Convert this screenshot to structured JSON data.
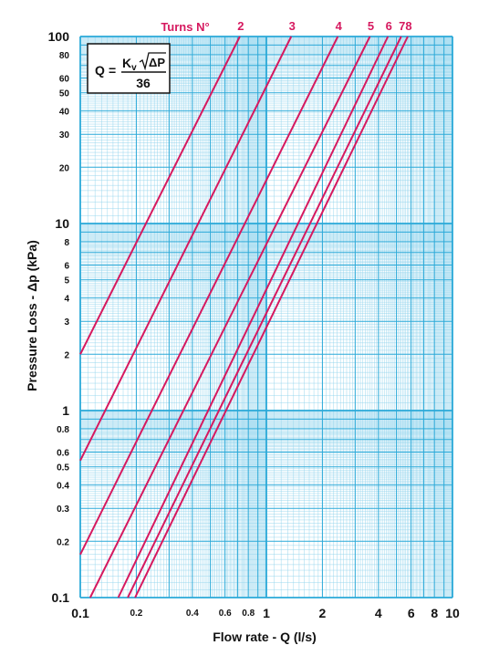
{
  "chart_data": {
    "type": "line",
    "title": "",
    "xlabel": "Flow rate - Q (l/s)",
    "ylabel": "Pressure Loss  - Δp (kPa)",
    "x_scale": "log",
    "y_scale": "log",
    "xlim": [
      0.1,
      10
    ],
    "ylim": [
      0.1,
      100
    ],
    "grid": true,
    "x_ticks": [
      {
        "value": 0.1,
        "label": "0.1"
      },
      {
        "value": 0.2,
        "label": "0.2"
      },
      {
        "value": 0.4,
        "label": "0.4"
      },
      {
        "value": 0.6,
        "label": "0.6"
      },
      {
        "value": 0.8,
        "label": "0.8"
      },
      {
        "value": 1,
        "label": "1"
      },
      {
        "value": 2,
        "label": "2"
      },
      {
        "value": 4,
        "label": "4"
      },
      {
        "value": 6,
        "label": "6"
      },
      {
        "value": 8,
        "label": "8"
      },
      {
        "value": 10,
        "label": "10"
      }
    ],
    "y_ticks": [
      {
        "value": 0.1,
        "label": "0.1"
      },
      {
        "value": 0.2,
        "label": "0.2"
      },
      {
        "value": 0.3,
        "label": "0.3"
      },
      {
        "value": 0.4,
        "label": "0.4"
      },
      {
        "value": 0.5,
        "label": "0.5"
      },
      {
        "value": 0.6,
        "label": "0.6"
      },
      {
        "value": 0.8,
        "label": "0.8"
      },
      {
        "value": 1,
        "label": "1"
      },
      {
        "value": 2,
        "label": "2"
      },
      {
        "value": 3,
        "label": "3"
      },
      {
        "value": 4,
        "label": "4"
      },
      {
        "value": 5,
        "label": "5"
      },
      {
        "value": 6,
        "label": "6"
      },
      {
        "value": 8,
        "label": "8"
      },
      {
        "value": 10,
        "label": "10"
      },
      {
        "value": 20,
        "label": "20"
      },
      {
        "value": 30,
        "label": "30"
      },
      {
        "value": 40,
        "label": "40"
      },
      {
        "value": 50,
        "label": "50"
      },
      {
        "value": 60,
        "label": "60"
      },
      {
        "value": 80,
        "label": "80"
      },
      {
        "value": 100,
        "label": "100"
      }
    ],
    "series_header": "Turns N°",
    "series": [
      {
        "name": "2",
        "x": [
          0.1,
          0.72
        ],
        "y": [
          2.0,
          100
        ]
      },
      {
        "name": "3",
        "x": [
          0.1,
          1.36
        ],
        "y": [
          0.54,
          100
        ]
      },
      {
        "name": "4",
        "x": [
          0.1,
          2.42
        ],
        "y": [
          0.17,
          100
        ]
      },
      {
        "name": "5",
        "x": [
          0.113,
          3.6
        ],
        "y": [
          0.1,
          100
        ]
      },
      {
        "name": "6",
        "x": [
          0.16,
          4.5
        ],
        "y": [
          0.1,
          100
        ]
      },
      {
        "name": "7",
        "x": [
          0.18,
          5.3
        ],
        "y": [
          0.1,
          100
        ]
      },
      {
        "name": "8",
        "x": [
          0.197,
          5.75
        ],
        "y": [
          0.1,
          100
        ]
      }
    ],
    "annotations": {
      "formula": {
        "lhs": "Q",
        "equals": "=",
        "numerator_coef": "K",
        "numerator_sub": "v",
        "numerator_var": "ΔP",
        "denominator": "36"
      }
    },
    "colors": {
      "line": "#d6195f",
      "grid_major": "#2aa9d8",
      "grid_minor": "#8fd3ec",
      "background": "#ffffff",
      "text": "#111111",
      "series_label": "#d6195f"
    }
  }
}
